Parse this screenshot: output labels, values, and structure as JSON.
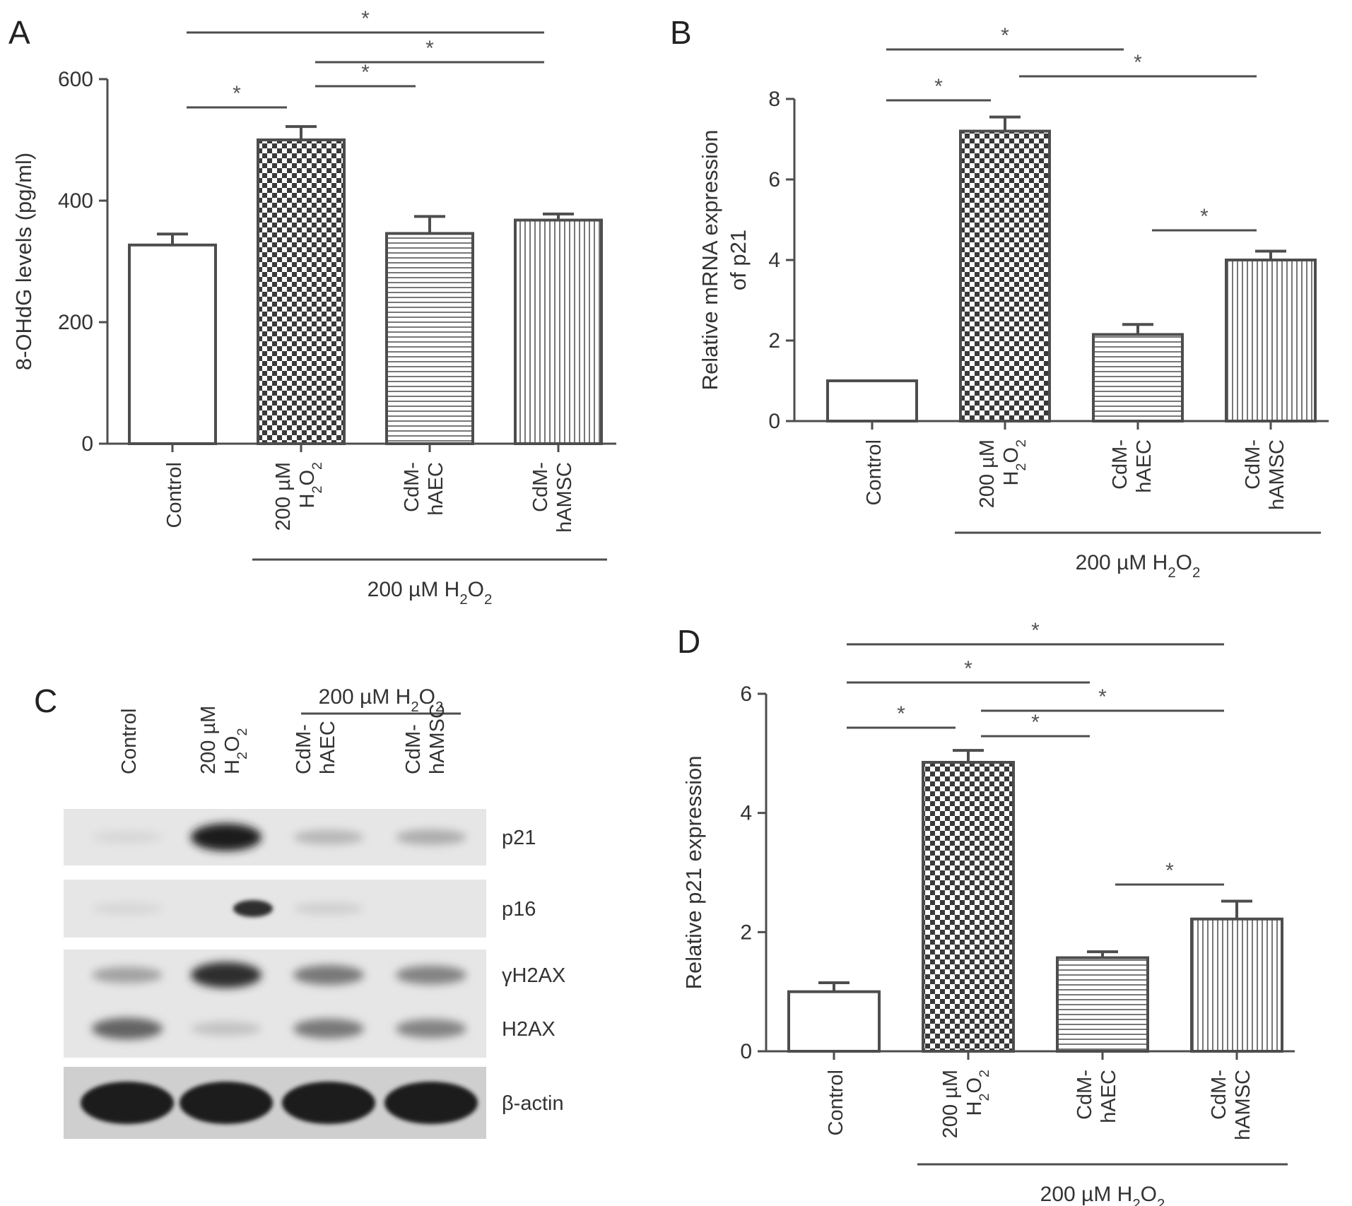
{
  "colors": {
    "axis": "#4d4d4d",
    "bar_stroke": "#4d4d4d",
    "background": "#ffffff",
    "pattern_dark": "#3a3a3a"
  },
  "chart_data": [
    {
      "panel": "A",
      "type": "bar",
      "categories": [
        "Control",
        "200 µM H2O2",
        "CdM-hAEC",
        "CdM-hAMSC"
      ],
      "values": [
        327,
        500,
        346,
        368
      ],
      "errors": [
        18,
        22,
        28,
        10
      ],
      "patterns": [
        "none",
        "checker",
        "horizontal",
        "vertical"
      ],
      "ylabel": "8-OHdG levels (pg/ml)",
      "ylim": [
        0,
        600
      ],
      "yticks": [
        0,
        200,
        400,
        600
      ],
      "group_label": "200 µM H2O2",
      "group_categories": [
        1,
        3
      ],
      "significance": [
        {
          "from": 0,
          "to": 1,
          "label": "*"
        },
        {
          "from": 1,
          "to": 2,
          "label": "*"
        },
        {
          "from": 1,
          "to": 3,
          "label": "*"
        },
        {
          "from": 0,
          "to": 3,
          "label": "*"
        }
      ]
    },
    {
      "panel": "B",
      "type": "bar",
      "categories": [
        "Control",
        "200 µM H2O2",
        "CdM-hAEC",
        "CdM-hAMSC"
      ],
      "values": [
        1.0,
        7.2,
        2.15,
        4.0
      ],
      "errors": [
        0.0,
        0.35,
        0.25,
        0.22
      ],
      "patterns": [
        "none",
        "checker",
        "horizontal",
        "vertical"
      ],
      "ylabel": "Relative mRNA expression of p21",
      "ylim": [
        0,
        8
      ],
      "yticks": [
        0,
        2,
        4,
        6,
        8
      ],
      "group_label": "200 µM H2O2",
      "group_categories": [
        1,
        3
      ],
      "significance": [
        {
          "from": 0,
          "to": 1,
          "label": "*"
        },
        {
          "from": 0,
          "to": 2,
          "label": "*"
        },
        {
          "from": 1,
          "to": 3,
          "label": "*"
        },
        {
          "from": 2,
          "to": 3,
          "label": "*"
        }
      ]
    },
    {
      "panel": "D",
      "type": "bar",
      "categories": [
        "Control",
        "200 µM H2O2",
        "CdM-hAEC",
        "CdM-hAMSC"
      ],
      "values": [
        1.0,
        4.85,
        1.57,
        2.22
      ],
      "errors": [
        0.15,
        0.2,
        0.1,
        0.3
      ],
      "patterns": [
        "none",
        "checker",
        "horizontal",
        "vertical"
      ],
      "ylabel": "Relative  p21 expression",
      "ylim": [
        0,
        6
      ],
      "yticks": [
        0,
        2,
        4,
        6
      ],
      "group_label": "200 µM H2O2",
      "group_categories": [
        1,
        3
      ],
      "significance": [
        {
          "from": 0,
          "to": 3,
          "label": "*"
        },
        {
          "from": 0,
          "to": 2,
          "label": "*"
        },
        {
          "from": 1,
          "to": 3,
          "label": "*"
        },
        {
          "from": 0,
          "to": 1,
          "label": "*"
        },
        {
          "from": 1,
          "to": 2,
          "label": "*"
        },
        {
          "from": 2,
          "to": 3,
          "label": "*"
        }
      ]
    }
  ],
  "western_blot": {
    "panel": "C",
    "group_label": "200 µM H2O2",
    "lanes": [
      "Control",
      "200 µM H2O2",
      "CdM-hAEC",
      "CdM-hAMSC"
    ],
    "rows": [
      {
        "protein": "p21",
        "intensity": [
          0.05,
          0.95,
          0.2,
          0.25
        ]
      },
      {
        "protein": "p16",
        "intensity": [
          0.05,
          0.0,
          0.08,
          0.0
        ],
        "extra_band": 0.85
      },
      {
        "protein": "γH2AX",
        "intensity": [
          0.3,
          0.85,
          0.5,
          0.45
        ]
      },
      {
        "protein": "H2AX",
        "intensity": [
          0.6,
          0.15,
          0.5,
          0.45
        ]
      },
      {
        "protein": "β-actin",
        "intensity": [
          0.95,
          0.95,
          0.95,
          0.95
        ]
      }
    ]
  }
}
